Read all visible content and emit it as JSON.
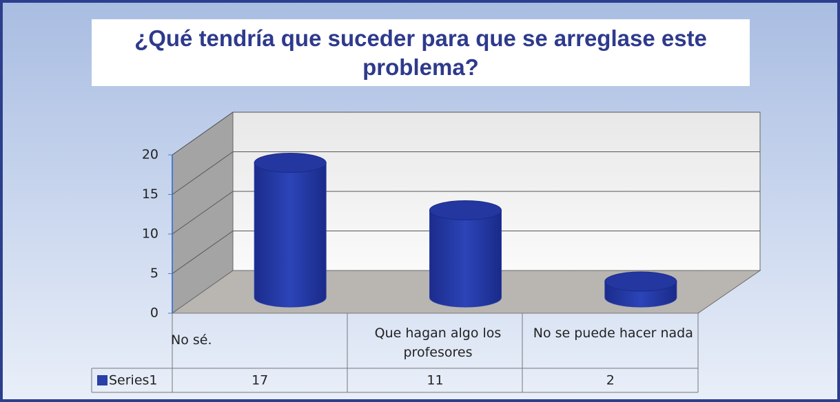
{
  "chart_data": {
    "type": "cylinder",
    "title": "¿Qué tendría que suceder para que se arreglase este problema?",
    "categories": [
      "No sé.",
      "Que hagan algo los profesores",
      "No se puede hacer nada"
    ],
    "series": [
      {
        "name": "Series1",
        "color": "#2a3fa8",
        "values": [
          17,
          11,
          2
        ]
      }
    ],
    "ylim": [
      0,
      20
    ],
    "yticks": [
      0,
      5,
      10,
      15,
      20
    ],
    "grid": true
  }
}
